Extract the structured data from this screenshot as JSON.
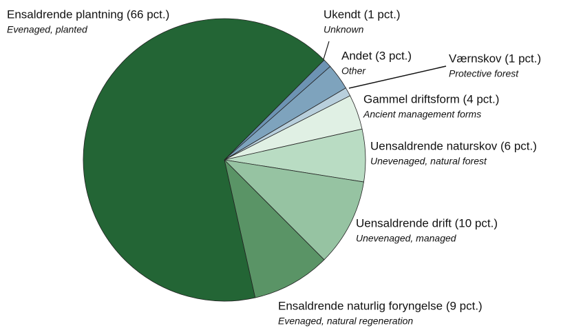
{
  "chart_data": {
    "type": "pie",
    "labels": [
      "Ukendt (1 pct.)",
      "Andet (3 pct.)",
      "Værnskov (1 pct.)",
      "Gammel driftsform (4 pct.)",
      "Uensaldrende naturskov (6 pct.)",
      "Uensaldrende drift (10 pct.)",
      "Ensaldrende naturlig foryngelse (9 pct.)",
      "Ensaldrende plantning (66 pct.)"
    ],
    "sublabels": [
      "Unknown",
      "Other",
      "Protective forest",
      "Ancient management forms",
      "Unevenaged, natural forest",
      "Unevenaged, managed",
      "Evenaged, natural regeneration",
      "Evenaged, planted"
    ],
    "values": [
      1,
      3,
      1,
      4,
      6,
      10,
      9,
      66
    ],
    "colors": [
      "#6d93b3",
      "#7ea3bd",
      "#b8cfdc",
      "#e0f0e4",
      "#b9dcc3",
      "#96c3a2",
      "#5a9466",
      "#236535"
    ]
  }
}
